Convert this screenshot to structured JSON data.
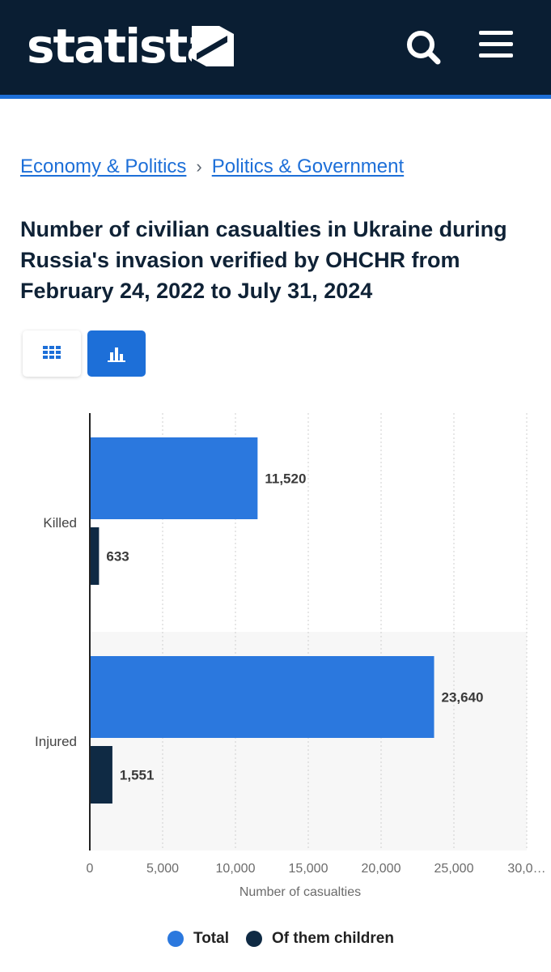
{
  "header": {
    "logo_text": "statista",
    "icons": [
      "statista-logo-mark",
      "search-icon",
      "menu-icon"
    ]
  },
  "breadcrumb": {
    "items": [
      "Economy & Politics",
      "Politics & Government"
    ],
    "separator": "›"
  },
  "title": "Number of civilian casualties in Ukraine during Russia's invasion verified by OHCHR from February 24, 2022 to July 31, 2024",
  "view_toggle": {
    "icons": [
      "table-icon",
      "bar-chart-icon"
    ],
    "active": "chart"
  },
  "colors": {
    "header_bg": "#0a1e33",
    "accent": "#1d6fd8",
    "series_total": "#2b78de",
    "series_children": "#0f2a44"
  },
  "chart_data": {
    "type": "bar",
    "orientation": "horizontal",
    "categories": [
      "Killed",
      "Injured"
    ],
    "series": [
      {
        "name": "Total",
        "values": [
          11520,
          23640
        ],
        "labels": [
          "11,520",
          "23,640"
        ]
      },
      {
        "name": "Of them children",
        "values": [
          633,
          1551
        ],
        "labels": [
          "633",
          "1,551"
        ]
      }
    ],
    "xlabel": "Number of casualties",
    "xlim": [
      0,
      30000
    ],
    "ticks": [
      "0",
      "5,000",
      "10,000",
      "15,000",
      "20,000",
      "25,000",
      "30,0…"
    ],
    "grid": true,
    "legend_position": "bottom"
  }
}
